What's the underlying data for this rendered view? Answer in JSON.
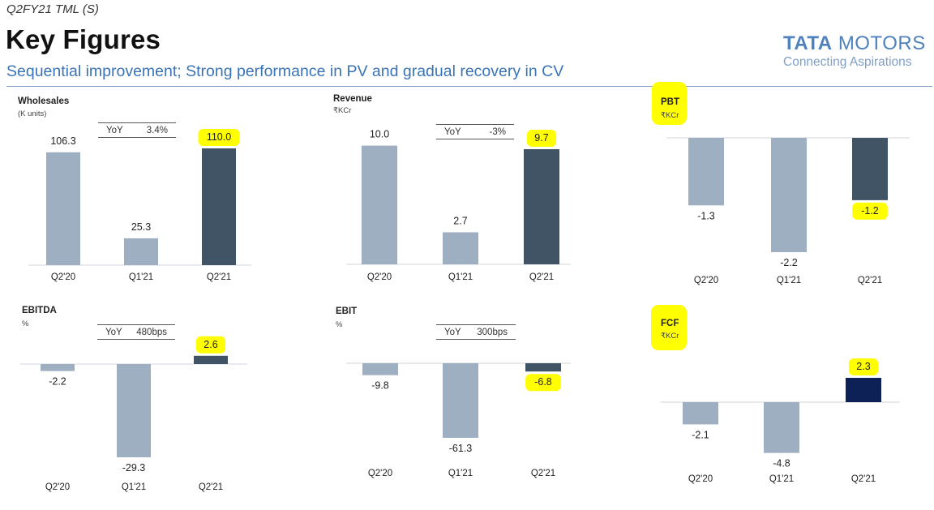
{
  "header": {
    "tag": "Q2FY21 TML (S)",
    "title": "Key Figures",
    "subtitle": "Sequential improvement; Strong performance in PV and gradual recovery in CV"
  },
  "logo": {
    "brand_bold": "TATA",
    "brand_rest": "MOTORS",
    "tagline": "Connecting Aspirations"
  },
  "colors": {
    "bar_light": "#9eafc1",
    "bar_dark": "#415465",
    "bar_navy": "#0d2157",
    "highlight": "#ffff00",
    "subtitle": "#3a74b6",
    "logo": "#4f81bd"
  },
  "chart_data": [
    {
      "id": "wholesales",
      "type": "bar",
      "title": "Wholesales",
      "unit": "(K units)",
      "categories": [
        "Q2'20",
        "Q1'21",
        "Q2'21"
      ],
      "values": [
        106.3,
        25.3,
        110.0
      ],
      "labels": [
        "106.3",
        "25.3",
        "110.0"
      ],
      "highlight_index": 2,
      "yoy": {
        "label": "YoY",
        "value": "3.4%"
      }
    },
    {
      "id": "revenue",
      "type": "bar",
      "title": "Revenue",
      "unit": "₹KCr",
      "categories": [
        "Q2'20",
        "Q1'21",
        "Q2'21"
      ],
      "values": [
        10.0,
        2.7,
        9.7
      ],
      "labels": [
        "10.0",
        "2.7",
        "9.7"
      ],
      "highlight_index": 2,
      "yoy": {
        "label": "YoY",
        "value": "-3%"
      }
    },
    {
      "id": "pbt",
      "type": "bar",
      "title": "PBT",
      "unit": "₹KCr",
      "categories": [
        "Q2'20",
        "Q1'21",
        "Q2'21"
      ],
      "values": [
        -1.3,
        -2.2,
        -1.2
      ],
      "labels": [
        "-1.3",
        "-2.2",
        "-1.2"
      ],
      "highlight_index": 2,
      "title_highlighted": true
    },
    {
      "id": "ebitda",
      "type": "bar",
      "title": "EBITDA",
      "unit": "%",
      "categories": [
        "Q2'20",
        "Q1'21",
        "Q2'21"
      ],
      "values": [
        -2.2,
        -29.3,
        2.6
      ],
      "labels": [
        "-2.2",
        "-29.3",
        "2.6"
      ],
      "highlight_index": 2,
      "yoy": {
        "label": "YoY",
        "value": "480bps"
      }
    },
    {
      "id": "ebit",
      "type": "bar",
      "title": "EBIT",
      "unit": "%",
      "categories": [
        "Q2'20",
        "Q1'21",
        "Q2'21"
      ],
      "values": [
        -9.8,
        -61.3,
        -6.8
      ],
      "labels": [
        "-9.8",
        "-61.3",
        "-6.8"
      ],
      "highlight_index": 2,
      "yoy": {
        "label": "YoY",
        "value": "300bps"
      }
    },
    {
      "id": "fcf",
      "type": "bar",
      "title": "FCF",
      "unit": "₹KCr",
      "categories": [
        "Q2'20",
        "Q1'21",
        "Q2'21"
      ],
      "values": [
        -2.1,
        -4.8,
        2.3
      ],
      "labels": [
        "-2.1",
        "-4.8",
        "2.3"
      ],
      "highlight_index": 2,
      "title_highlighted": true
    }
  ]
}
